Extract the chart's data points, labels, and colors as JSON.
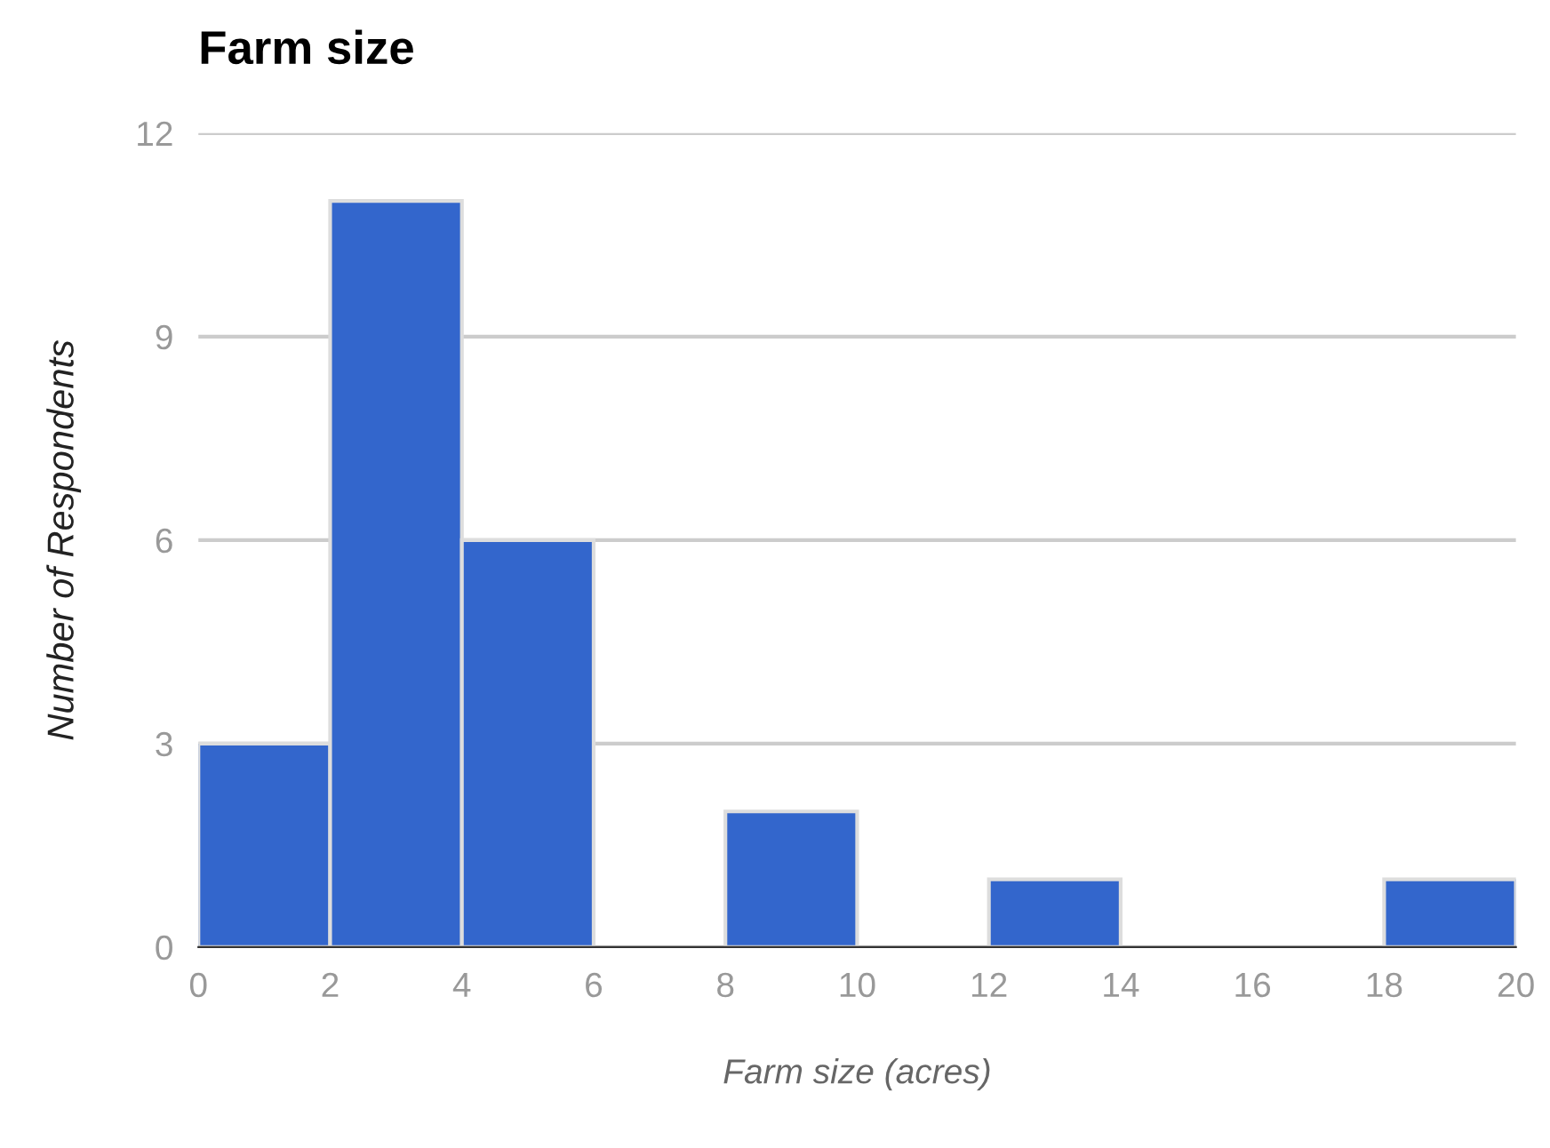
{
  "chart_data": {
    "type": "histogram",
    "title": "Farm size",
    "xlabel": "Farm size (acres)",
    "ylabel": "Number of Respondents",
    "bins": [
      0,
      2,
      4,
      6,
      8,
      10,
      12,
      14,
      16,
      18,
      20
    ],
    "values": [
      3,
      11,
      6,
      0,
      2,
      0,
      1,
      0,
      0,
      1
    ],
    "color": "#3366cc",
    "xlim": [
      0,
      20
    ],
    "xticks": [
      0,
      2,
      4,
      6,
      8,
      10,
      12,
      14,
      16,
      18,
      20
    ],
    "ylim": [
      0,
      12
    ],
    "yticks": [
      0,
      3,
      6,
      9,
      12
    ],
    "grid": "y"
  }
}
